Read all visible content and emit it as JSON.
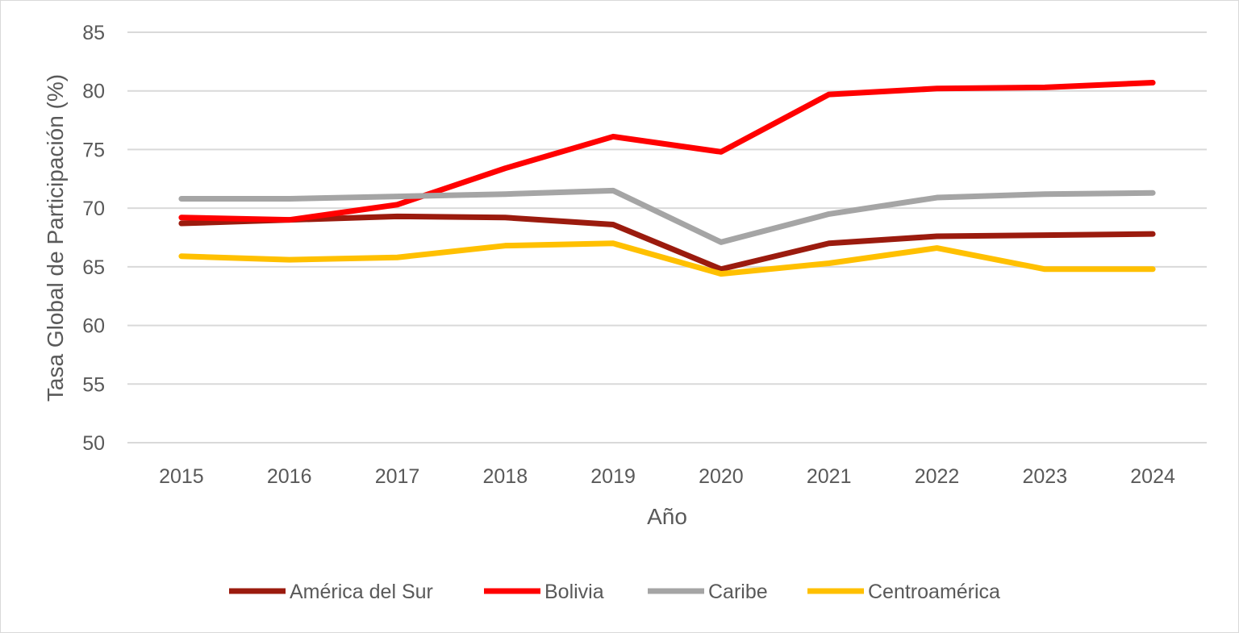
{
  "chart_data": {
    "type": "line",
    "title": "",
    "xlabel": "Año",
    "ylabel": "Tasa Global de Participación (%)",
    "ylim": [
      50,
      85
    ],
    "yticks": [
      50,
      55,
      60,
      65,
      70,
      75,
      80,
      85
    ],
    "grid": true,
    "legend_position": "bottom",
    "x": [
      "2015",
      "2016",
      "2017",
      "2018",
      "2019",
      "2020",
      "2021",
      "2022",
      "2023",
      "2024"
    ],
    "series": [
      {
        "name": "América del Sur",
        "color": "#9B1B0E",
        "values": [
          68.7,
          69.0,
          69.3,
          69.2,
          68.6,
          64.8,
          67.0,
          67.6,
          67.7,
          67.8
        ]
      },
      {
        "name": "Bolivia",
        "color": "#FF0000",
        "values": [
          69.2,
          69.0,
          70.3,
          73.4,
          76.1,
          74.8,
          79.7,
          80.2,
          80.3,
          80.7
        ]
      },
      {
        "name": "Caribe",
        "color": "#A5A5A5",
        "values": [
          70.8,
          70.8,
          71.0,
          71.2,
          71.5,
          67.1,
          69.5,
          70.9,
          71.2,
          71.3
        ]
      },
      {
        "name": "Centroamérica",
        "color": "#FFC000",
        "values": [
          65.9,
          65.6,
          65.8,
          66.8,
          67.0,
          64.4,
          65.3,
          66.6,
          64.8,
          64.8
        ]
      }
    ]
  }
}
